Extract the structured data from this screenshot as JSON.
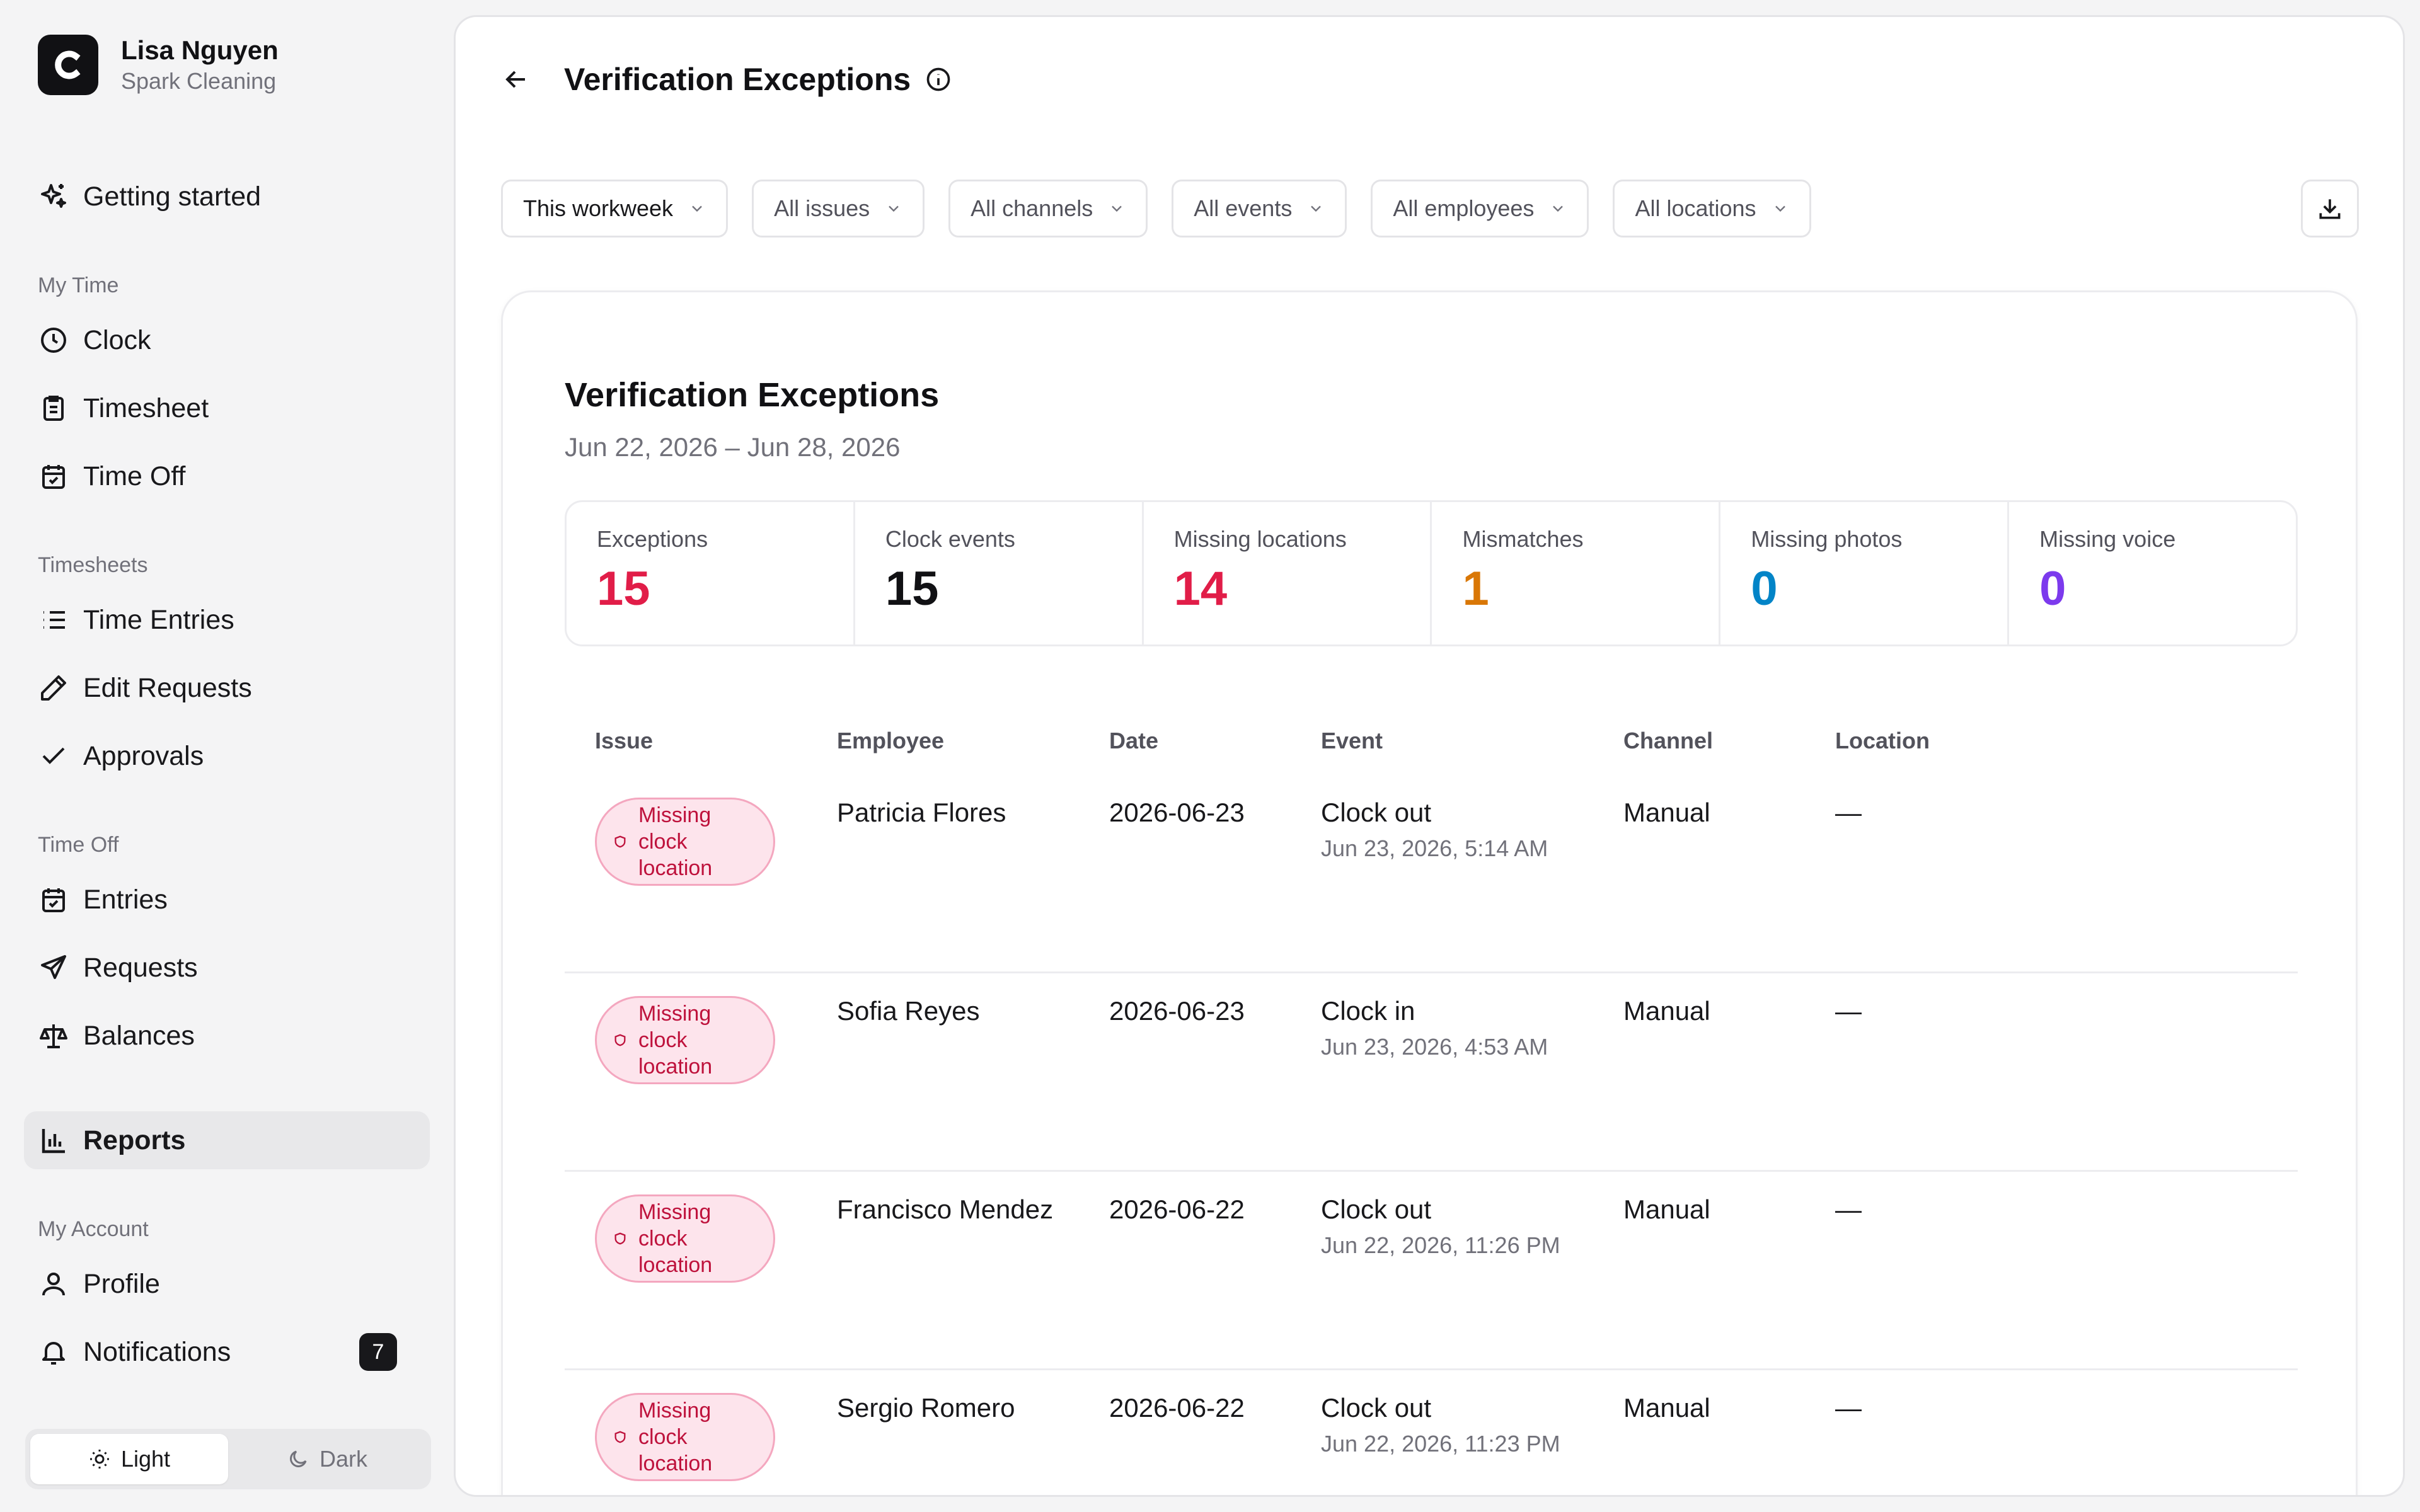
{
  "user": {
    "name": "Lisa Nguyen",
    "org": "Spark Cleaning",
    "logo_letter": "C"
  },
  "sidebar": {
    "getting_started": "Getting started",
    "sections": [
      {
        "title": "My Time",
        "items": [
          "Clock",
          "Timesheet",
          "Time Off"
        ]
      },
      {
        "title": "Timesheets",
        "items": [
          "Time Entries",
          "Edit Requests",
          "Approvals"
        ]
      },
      {
        "title": "Time Off",
        "items": [
          "Entries",
          "Requests",
          "Balances"
        ]
      }
    ],
    "reports": "Reports",
    "account_title": "My Account",
    "profile": "Profile",
    "notifications": "Notifications",
    "notifications_count": "7",
    "theme_light": "Light",
    "theme_dark": "Dark"
  },
  "page": {
    "title": "Verification Exceptions"
  },
  "filters": [
    "This workweek",
    "All issues",
    "All channels",
    "All events",
    "All employees",
    "All locations"
  ],
  "report": {
    "title": "Verification Exceptions",
    "range": "Jun 22, 2026 – Jun 28, 2026",
    "stats": [
      {
        "label": "Exceptions",
        "value": "15",
        "color": "#e11d48"
      },
      {
        "label": "Clock events",
        "value": "15",
        "color": "#111114"
      },
      {
        "label": "Missing locations",
        "value": "14",
        "color": "#e11d48"
      },
      {
        "label": "Mismatches",
        "value": "1",
        "color": "#d97706"
      },
      {
        "label": "Missing photos",
        "value": "0",
        "color": "#0284c7"
      },
      {
        "label": "Missing voice",
        "value": "0",
        "color": "#7c3aed"
      }
    ],
    "columns": [
      "Issue",
      "Employee",
      "Date",
      "Event",
      "Channel",
      "Location"
    ],
    "rows": [
      {
        "issue": "Missing clock location",
        "employee": "Patricia Flores",
        "date": "2026-06-23",
        "event": "Clock out",
        "event_time": "Jun 23, 2026, 5:14 AM",
        "channel": "Manual",
        "location": "—"
      },
      {
        "issue": "Missing clock location",
        "employee": "Sofia Reyes",
        "date": "2026-06-23",
        "event": "Clock in",
        "event_time": "Jun 23, 2026, 4:53 AM",
        "channel": "Manual",
        "location": "—"
      },
      {
        "issue": "Missing clock location",
        "employee": "Francisco Mendez",
        "date": "2026-06-22",
        "event": "Clock out",
        "event_time": "Jun 22, 2026, 11:26 PM",
        "channel": "Manual",
        "location": "—"
      },
      {
        "issue": "Missing clock location",
        "employee": "Sergio Romero",
        "date": "2026-06-22",
        "event": "Clock out",
        "event_time": "Jun 22, 2026, 11:23 PM",
        "channel": "Manual",
        "location": "—"
      }
    ]
  }
}
